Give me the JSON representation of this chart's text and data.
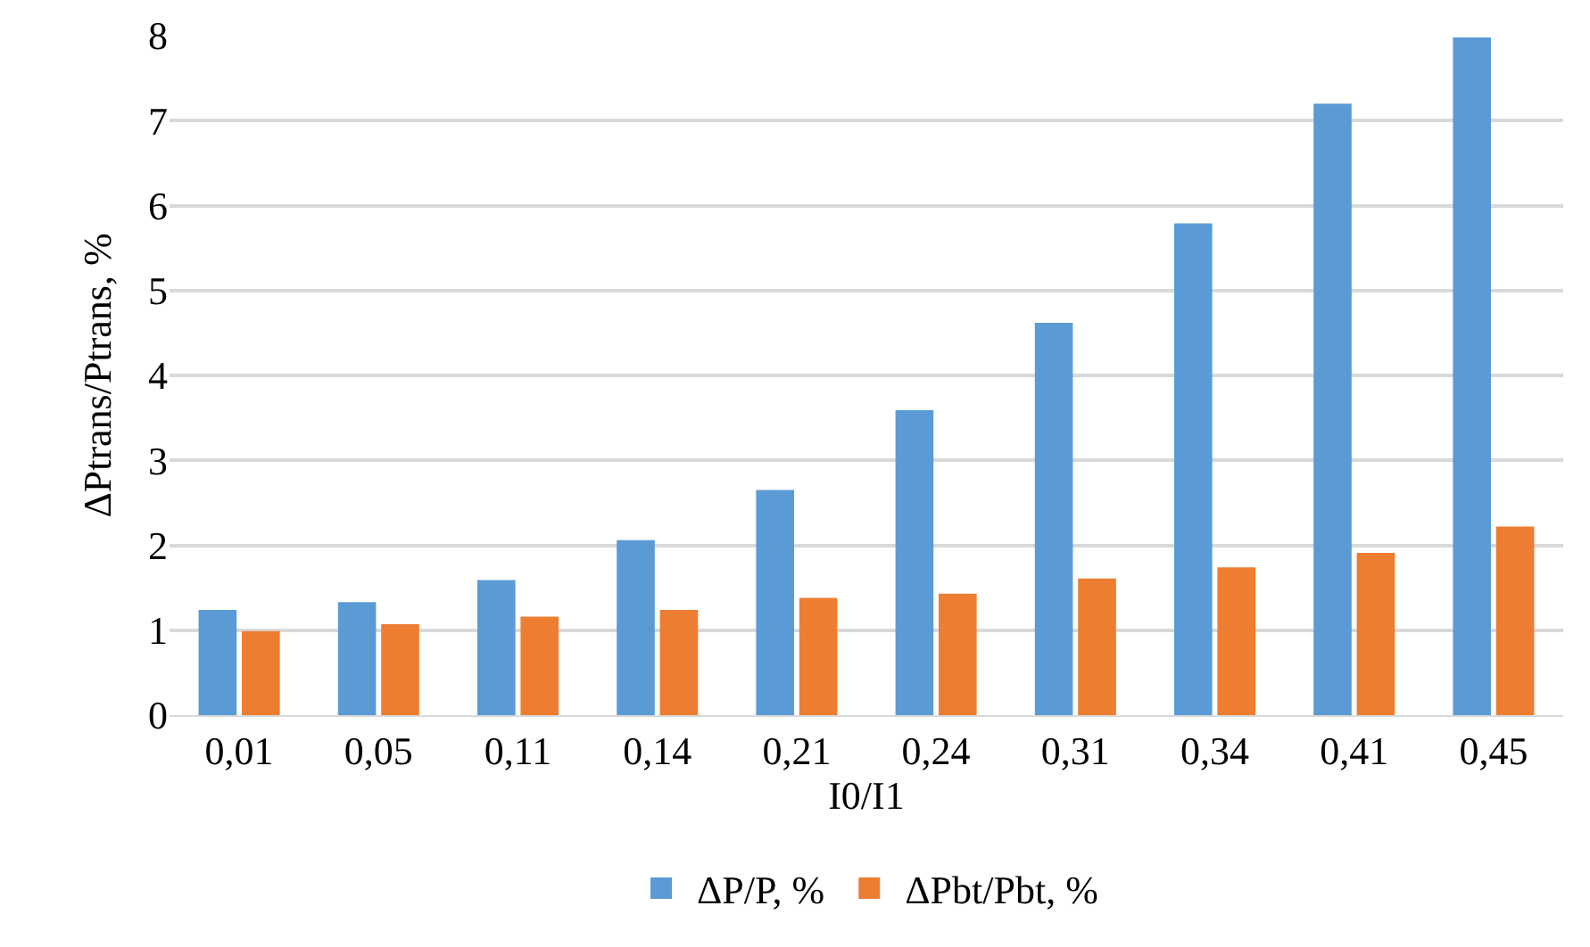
{
  "chart_data": {
    "type": "bar",
    "xlabel": "I0/I1",
    "ylabel": "ΔPtrans/Ptrans, %",
    "categories": [
      "0,01",
      "0,05",
      "0,11",
      "0,14",
      "0,21",
      "0,24",
      "0,31",
      "0,34",
      "0,41",
      "0,45"
    ],
    "series": [
      {
        "name": "ΔP/P, %",
        "color": "#5b9bd5",
        "values": [
          1.24,
          1.33,
          1.59,
          2.06,
          2.65,
          3.59,
          4.62,
          5.79,
          7.2,
          7.98
        ]
      },
      {
        "name": "ΔPbt/Pbt, %",
        "color": "#ed7d31",
        "values": [
          0.99,
          1.07,
          1.16,
          1.24,
          1.38,
          1.43,
          1.61,
          1.74,
          1.91,
          2.22
        ]
      }
    ],
    "ylim": [
      0,
      8
    ],
    "yticks": [
      0,
      1,
      2,
      3,
      4,
      5,
      6,
      7,
      8
    ],
    "grid": "y",
    "legend": "bottom"
  }
}
